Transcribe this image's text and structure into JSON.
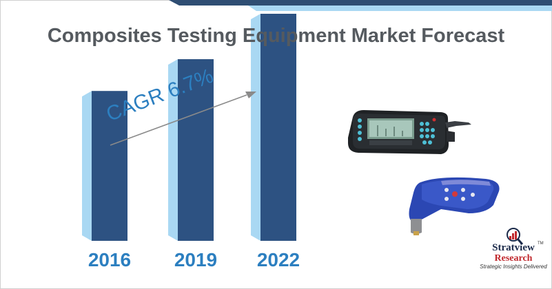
{
  "title": "Composites Testing Equipment Market Forecast",
  "chart_data": {
    "type": "bar",
    "categories": [
      "2016",
      "2019",
      "2022"
    ],
    "values": [
      3.3,
      4.0,
      5.0
    ],
    "annotation": "CAGR 6.7%",
    "xlabel": "",
    "ylabel": "",
    "grid": false,
    "legend": "none"
  },
  "brand": {
    "name": "Stratview",
    "sub": "Research",
    "tagline": "Strategic Insights Delivered",
    "tm": "TM"
  },
  "colors": {
    "bar_front": "#2d5282",
    "bar_side": "#a9d8f3",
    "accent": "#2c7fc0",
    "title": "#555a5f",
    "header_dark": "#2f4e73",
    "header_light": "#a9d8f3"
  },
  "icons": [
    "ultrasonic-flaw-detector-device-icon",
    "coating-thickness-gauge-device-icon",
    "stratview-logo-icon"
  ]
}
